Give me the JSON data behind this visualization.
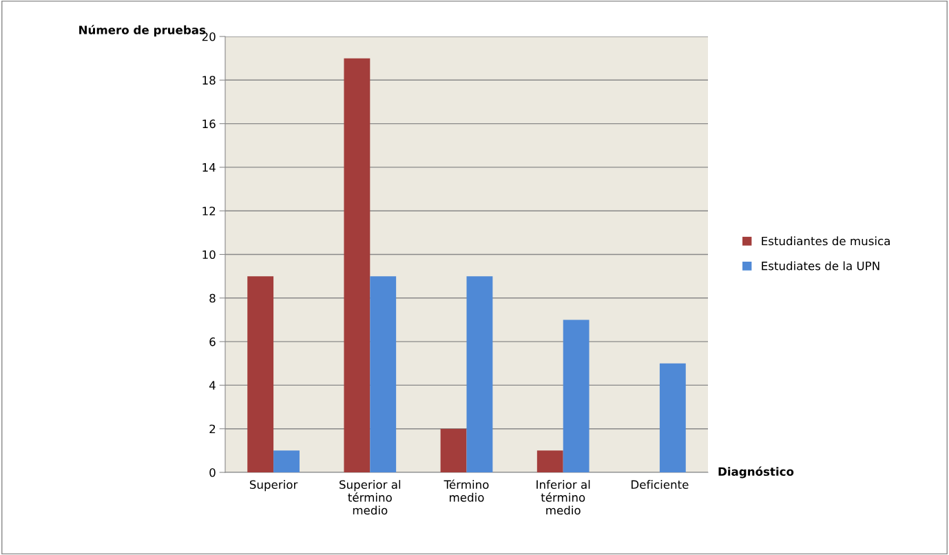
{
  "chart_data": {
    "type": "bar",
    "ylabel": "Número de pruebas",
    "xlabel": "Diagnóstico",
    "categories": [
      "Superior",
      "Superior al\ntérmino\nmedio",
      "Término\nmedio",
      "Inferior al\ntérmino\nmedio",
      "Deficiente"
    ],
    "series": [
      {
        "name": "Estudiantes de musica",
        "color": "#a33d3b",
        "values": [
          9,
          19,
          2,
          1,
          0
        ]
      },
      {
        "name": "Estudiates de la UPN",
        "color": "#4f89d6",
        "values": [
          1,
          9,
          9,
          7,
          5
        ]
      }
    ],
    "ylim": [
      0,
      20
    ],
    "yticks": [
      0,
      2,
      4,
      6,
      8,
      10,
      12,
      14,
      16,
      18,
      20
    ],
    "grid": "y",
    "legend": "right"
  }
}
